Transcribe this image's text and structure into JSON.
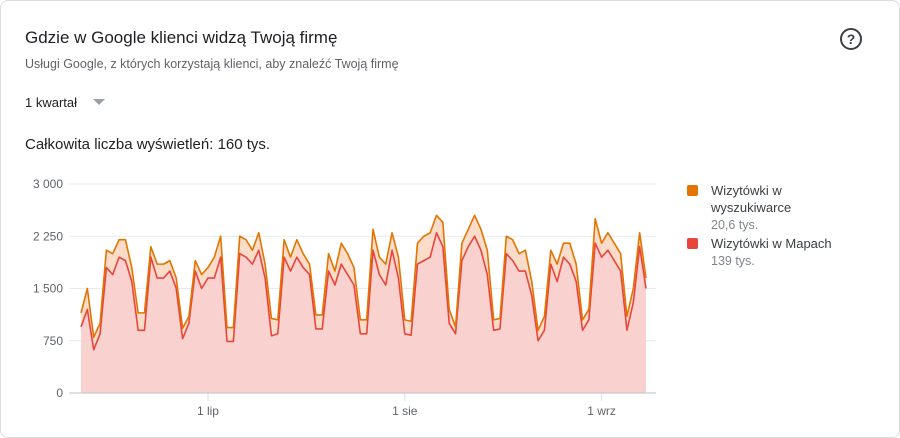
{
  "header": {
    "title": "Gdzie w Google klienci widzą Twoją firmę",
    "subtitle": "Usługi Google, z których korzystają klienci, aby znaleźć Twoją firmę",
    "period": "1 kwartał",
    "total": "Całkowita liczba wyświetleń: 160 tys."
  },
  "chart_data": {
    "type": "stacked-area",
    "categories": [
      null,
      null,
      null,
      null,
      null,
      null,
      null,
      null,
      null,
      null,
      null,
      null,
      null,
      null,
      null,
      null,
      null,
      null,
      null,
      null,
      "1 lip",
      null,
      null,
      null,
      null,
      null,
      null,
      null,
      null,
      null,
      null,
      null,
      null,
      null,
      null,
      null,
      null,
      null,
      null,
      null,
      null,
      null,
      null,
      null,
      null,
      null,
      null,
      null,
      null,
      null,
      null,
      "1 sie",
      null,
      null,
      null,
      null,
      null,
      null,
      null,
      null,
      null,
      null,
      null,
      null,
      null,
      null,
      null,
      null,
      null,
      null,
      null,
      null,
      null,
      null,
      null,
      null,
      null,
      null,
      null,
      null,
      null,
      null,
      "1 wrz",
      null,
      null,
      null,
      null,
      null,
      null,
      null
    ],
    "ylim": [
      0,
      3000
    ],
    "yticks": [
      {
        "value": 0,
        "label": "0"
      },
      {
        "value": 750,
        "label": "750"
      },
      {
        "value": 1500,
        "label": "1 500"
      },
      {
        "value": 2250,
        "label": "2 250"
      },
      {
        "value": 3000,
        "label": "3 000"
      }
    ],
    "grid": true,
    "series": [
      {
        "name": "Wizytówki w Mapach",
        "color": "#e8453c",
        "area_color": "#f9d2cf",
        "total": 139000,
        "total_label": "139 tys.",
        "values": [
          950,
          1200,
          620,
          850,
          1800,
          1700,
          1950,
          1900,
          1600,
          900,
          900,
          1950,
          1650,
          1650,
          1750,
          1500,
          780,
          1000,
          1750,
          1500,
          1650,
          1650,
          1950,
          740,
          740,
          2000,
          1950,
          1850,
          2050,
          1650,
          820,
          850,
          1950,
          1750,
          1950,
          1800,
          1700,
          920,
          920,
          1750,
          1550,
          1850,
          1700,
          1550,
          850,
          850,
          2050,
          1700,
          1550,
          2050,
          1650,
          850,
          830,
          1850,
          1900,
          1950,
          2300,
          2100,
          1000,
          850,
          1900,
          2100,
          2250,
          2050,
          1700,
          900,
          920,
          2000,
          1900,
          1750,
          1750,
          1400,
          750,
          900,
          1850,
          1600,
          1950,
          1850,
          1600,
          900,
          1050,
          2150,
          1950,
          2050,
          1900,
          1750,
          900,
          1300,
          2100,
          1500
        ]
      },
      {
        "name": "Wizytówki w wyszukiwarce",
        "color": "#e37400",
        "area_color": "#fbdcc8",
        "total": 20600,
        "total_label": "20,6 tys.",
        "values": [
          200,
          300,
          180,
          150,
          250,
          300,
          250,
          300,
          200,
          250,
          250,
          150,
          200,
          200,
          150,
          150,
          150,
          100,
          150,
          200,
          150,
          300,
          300,
          200,
          200,
          250,
          250,
          200,
          250,
          200,
          250,
          200,
          250,
          200,
          250,
          200,
          150,
          200,
          200,
          250,
          200,
          300,
          300,
          250,
          200,
          200,
          300,
          250,
          300,
          250,
          300,
          200,
          200,
          300,
          350,
          350,
          250,
          350,
          200,
          100,
          250,
          250,
          300,
          300,
          350,
          150,
          150,
          250,
          300,
          250,
          300,
          200,
          150,
          200,
          200,
          250,
          200,
          300,
          250,
          150,
          150,
          350,
          200,
          250,
          250,
          250,
          200,
          200,
          200,
          150
        ]
      }
    ]
  }
}
